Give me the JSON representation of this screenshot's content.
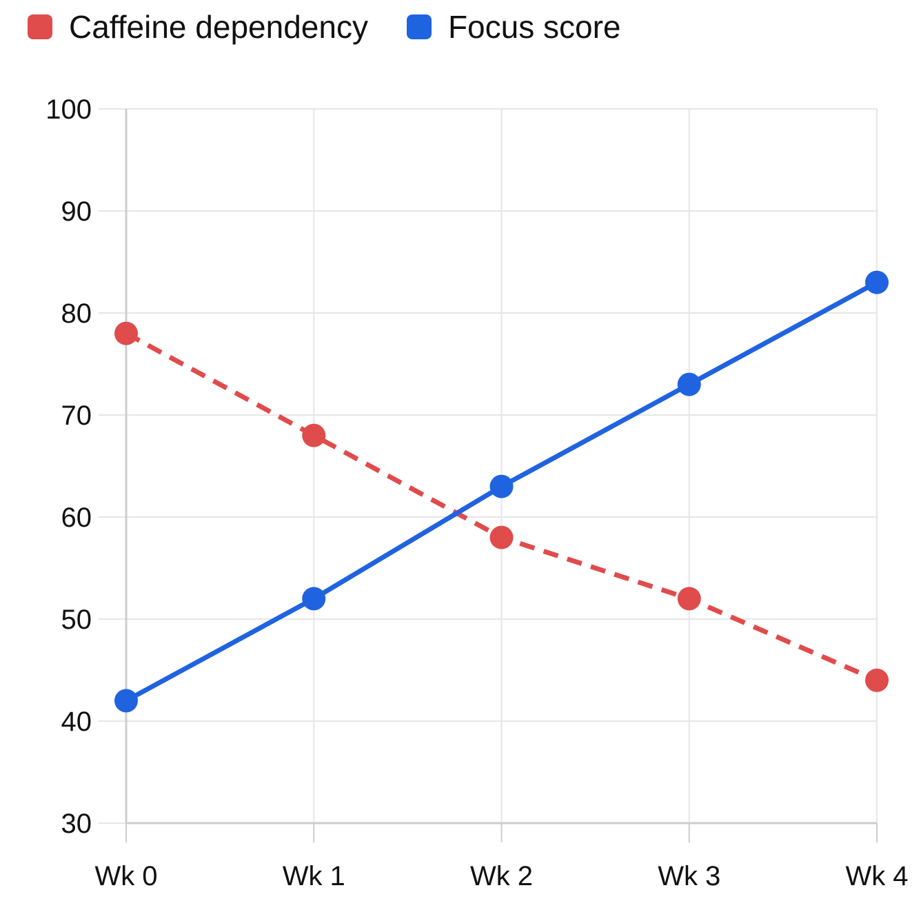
{
  "legend": {
    "series_0": "Caffeine dependency",
    "series_1": "Focus score"
  },
  "chart_data": {
    "type": "line",
    "title": "",
    "xlabel": "",
    "ylabel": "",
    "categories": [
      "Wk 0",
      "Wk 1",
      "Wk 2",
      "Wk 3",
      "Wk 4"
    ],
    "ylim": [
      30,
      100
    ],
    "yticks": [
      30,
      40,
      50,
      60,
      70,
      80,
      90,
      100
    ],
    "grid": true,
    "legend_position": "top-left",
    "series": [
      {
        "name": "Caffeine dependency",
        "values": [
          78,
          68,
          58,
          52,
          44
        ],
        "color": "#e04b4b",
        "line_style": "dashed"
      },
      {
        "name": "Focus score",
        "values": [
          42,
          52,
          63,
          73,
          83
        ],
        "color": "#1f63e0",
        "line_style": "solid"
      }
    ]
  }
}
